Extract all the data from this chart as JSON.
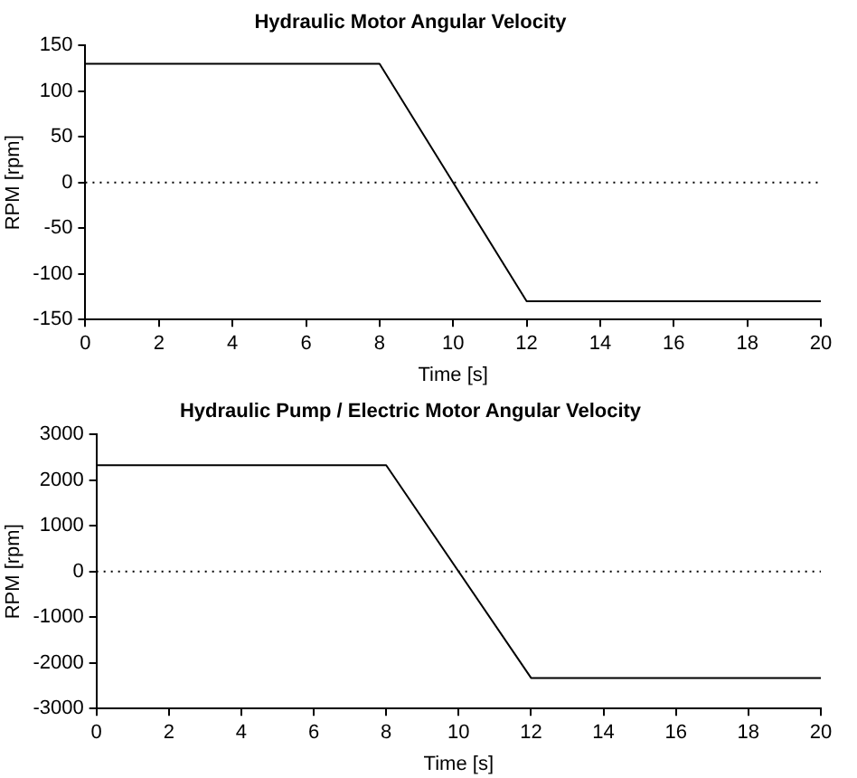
{
  "chart_data": [
    {
      "type": "line",
      "title": "Hydraulic Motor Angular Velocity",
      "xlabel": "Time [s]",
      "ylabel": "RPM [rpm]",
      "x": [
        0,
        8,
        12,
        20
      ],
      "series": [
        {
          "color": "#000000",
          "values": [
            130,
            130,
            -130,
            -130
          ]
        }
      ],
      "xlim": [
        0,
        20
      ],
      "xticks": [
        0,
        2,
        4,
        6,
        8,
        10,
        12,
        14,
        16,
        18,
        20
      ],
      "ylim": [
        -150,
        150
      ],
      "yticks": [
        -150,
        -100,
        -50,
        0,
        50,
        100,
        150
      ],
      "ref_lines": [
        {
          "axis": "y",
          "value": 0,
          "color": "#000000",
          "line_style": "dotted"
        }
      ],
      "grid": false,
      "legend": false,
      "marker": "none"
    },
    {
      "type": "line",
      "title": "Hydraulic Pump / Electric Motor Angular Velocity",
      "xlabel": "Time [s]",
      "ylabel": "RPM [rpm]",
      "x": [
        0,
        8,
        12,
        20
      ],
      "series": [
        {
          "color": "#000000",
          "values": [
            2330,
            2330,
            -2330,
            -2330
          ]
        }
      ],
      "xlim": [
        0,
        20
      ],
      "xticks": [
        0,
        2,
        4,
        6,
        8,
        10,
        12,
        14,
        16,
        18,
        20
      ],
      "ylim": [
        -3000,
        3000
      ],
      "yticks": [
        -3000,
        -2000,
        -1000,
        0,
        1000,
        2000,
        3000
      ],
      "ref_lines": [
        {
          "axis": "y",
          "value": 0,
          "color": "#000000",
          "line_style": "dotted"
        }
      ],
      "grid": false,
      "legend": false,
      "marker": "none"
    }
  ]
}
